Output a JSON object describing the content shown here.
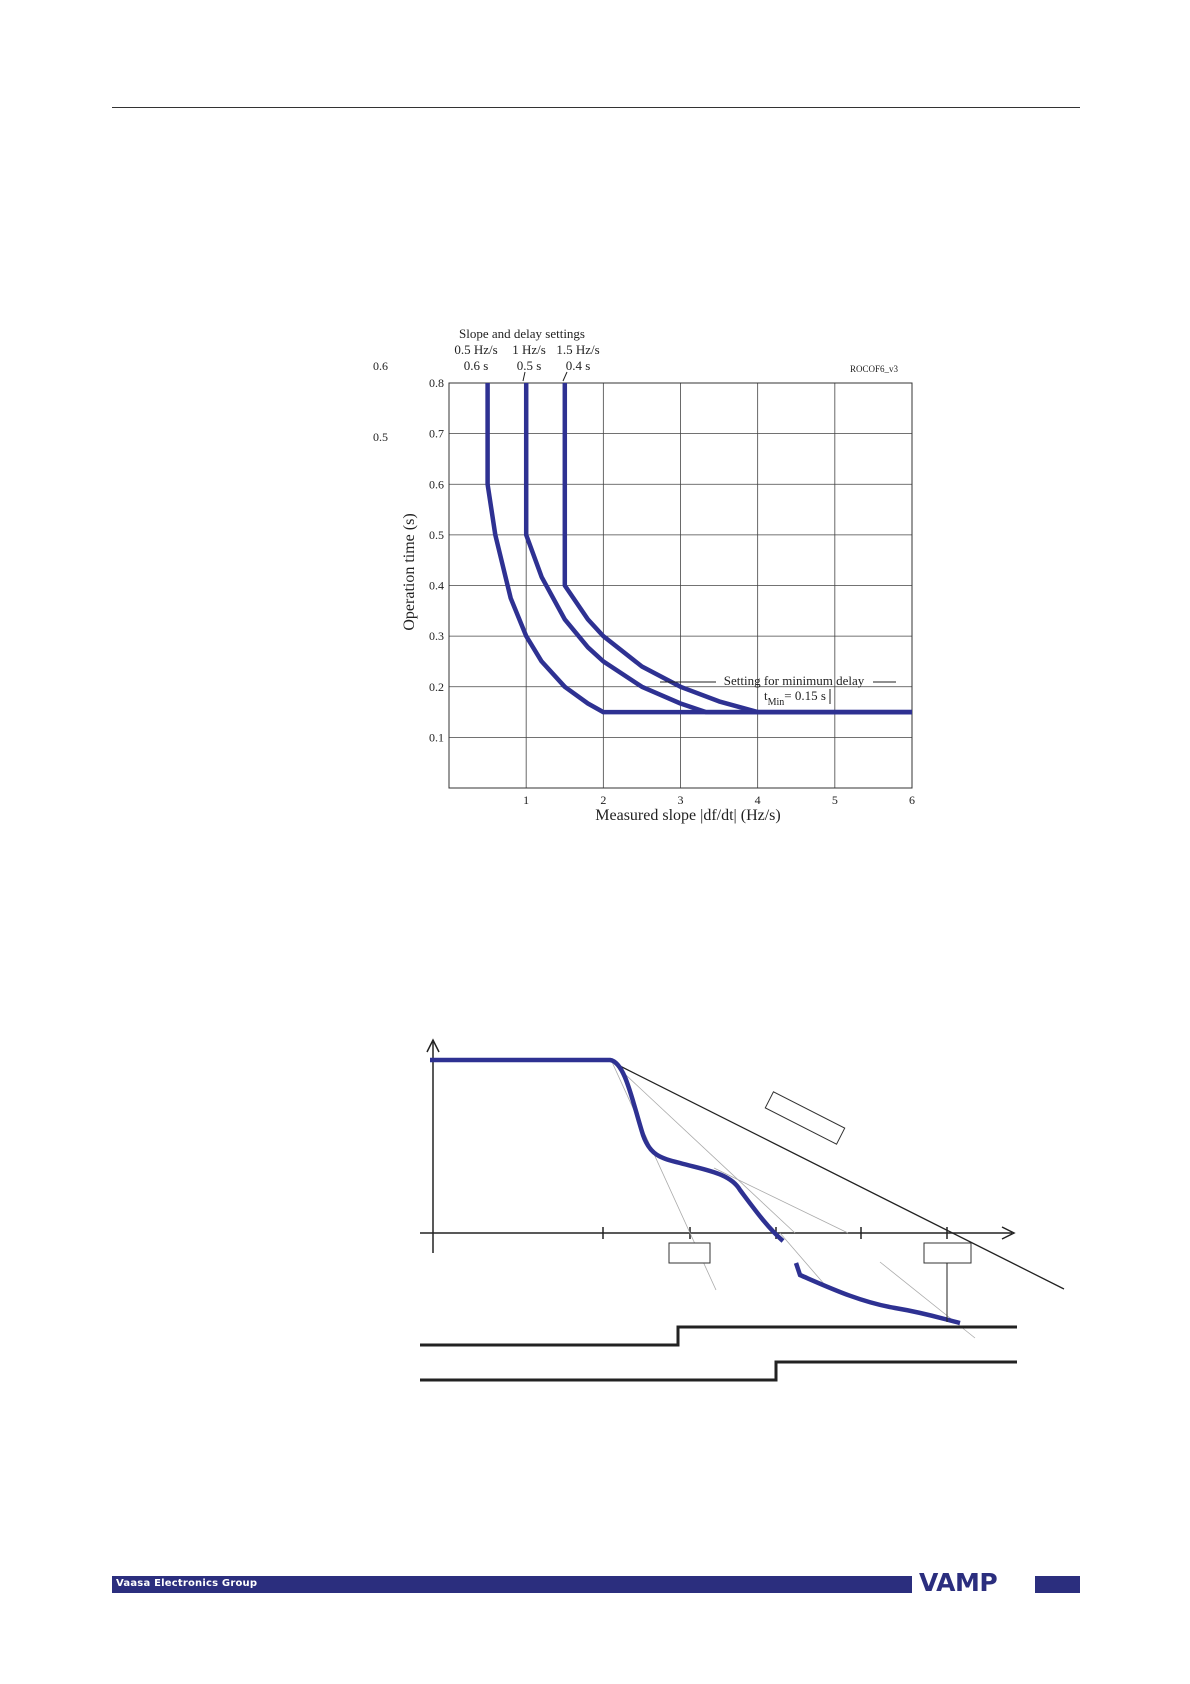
{
  "page": {
    "stray_labels": [
      "0.6",
      "0.5"
    ],
    "footer_text": "Vaasa Electronics Group",
    "logo_text": "VAMP",
    "brand_color": "#2b2e7e"
  },
  "chart_data": [
    {
      "type": "line",
      "figure_id": "ROCOF6_v3",
      "title_lines": [
        "Slope and delay settings"
      ],
      "xlabel": "Measured slope |df/dt|  (Hz/s)",
      "ylabel": "Operation time  (s)",
      "xlim": [
        0,
        6
      ],
      "ylim": [
        0,
        0.8
      ],
      "xticks": [
        1,
        2,
        3,
        4,
        5,
        6
      ],
      "yticks": [
        0.1,
        0.2,
        0.3,
        0.4,
        0.5,
        0.6,
        0.7,
        0.8
      ],
      "grid": true,
      "line_color": "#2e3192",
      "series": [
        {
          "slope_label": "0.5 Hz/s",
          "delay_label": "0.6 s",
          "slope_setting": 0.5,
          "delay_setting": 0.6,
          "x": [
            0.5,
            0.5,
            0.6,
            0.8,
            1.0,
            1.2,
            1.5,
            1.8,
            2.0,
            6.0
          ],
          "y": [
            0.8,
            0.6,
            0.5,
            0.375,
            0.3,
            0.25,
            0.2,
            0.167,
            0.15,
            0.15
          ]
        },
        {
          "slope_label": "1 Hz/s",
          "delay_label": "0.5 s",
          "slope_setting": 1.0,
          "delay_setting": 0.5,
          "x": [
            1.0,
            1.0,
            1.2,
            1.5,
            1.8,
            2.0,
            2.5,
            3.0,
            3.33,
            6.0
          ],
          "y": [
            0.8,
            0.5,
            0.417,
            0.333,
            0.278,
            0.25,
            0.2,
            0.167,
            0.15,
            0.15
          ]
        },
        {
          "slope_label": "1.5 Hz/s",
          "delay_label": "0.4 s",
          "slope_setting": 1.5,
          "delay_setting": 0.4,
          "x": [
            1.5,
            1.5,
            1.8,
            2.0,
            2.5,
            3.0,
            3.5,
            4.0,
            6.0
          ],
          "y": [
            0.8,
            0.4,
            0.333,
            0.3,
            0.24,
            0.2,
            0.171,
            0.15,
            0.15
          ]
        }
      ],
      "annotation": {
        "text": "Setting for minimum delay",
        "tmin_prefix": "t",
        "tmin_sub": "Min",
        "tmin_suffix": "= 0.15 s",
        "x": 4.0,
        "y": 0.15
      }
    },
    {
      "type": "diagram",
      "line_color": "#2e3192"
    }
  ]
}
